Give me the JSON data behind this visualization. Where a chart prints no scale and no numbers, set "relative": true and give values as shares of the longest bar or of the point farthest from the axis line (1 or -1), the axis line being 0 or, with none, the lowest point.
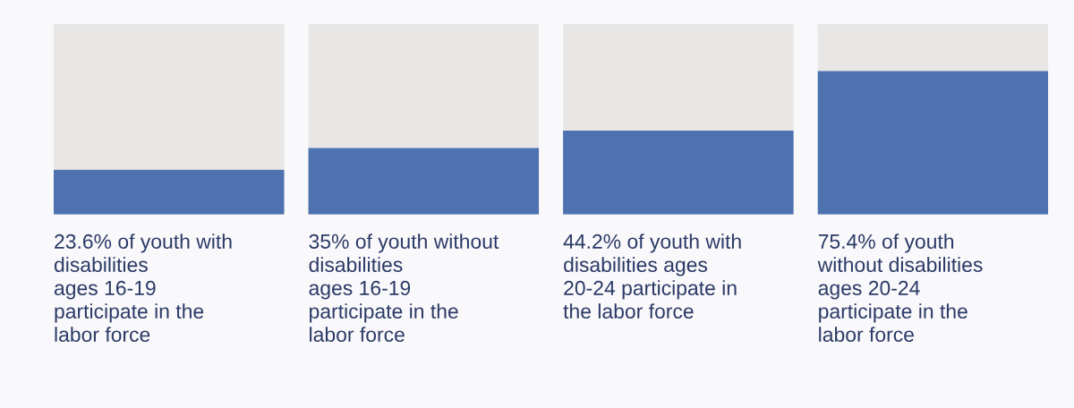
{
  "chart_data": {
    "type": "bar",
    "stacked": true,
    "relative": true,
    "categories": [
      "23.6% of youth with\ndisabilities\nages 16-19\nparticipate in the\nlabor force",
      "35% of youth without\ndisabilities\nages 16-19\nparticipate in the\nlabor force",
      "44.2% of youth with\ndisabilities ages\n20-24 participate in\nthe labor force",
      "75.4% of youth\nwithout disabilities\nages 20-24\nparticipate in the\nlabor force"
    ],
    "series": [
      {
        "color": "#4e72b0",
        "values": [
          0.236,
          0.35,
          0.442,
          0.754
        ]
      },
      {
        "color": "#e8e7e6",
        "values": [
          0.764,
          0.65,
          0.558,
          0.246
        ]
      }
    ]
  }
}
